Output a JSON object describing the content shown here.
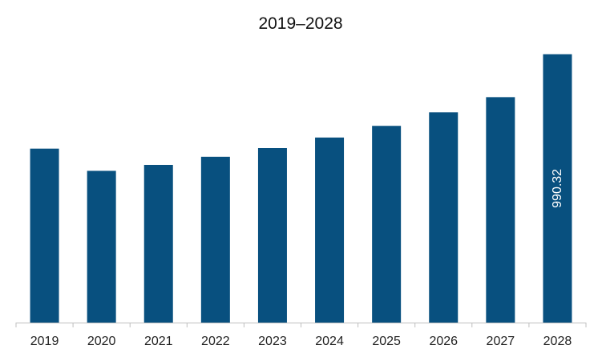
{
  "chart_data": {
    "type": "bar",
    "title": "2019–2028",
    "xlabel": "",
    "ylabel": "",
    "categories": [
      "2019",
      "2020",
      "2021",
      "2022",
      "2023",
      "2024",
      "2025",
      "2026",
      "2027",
      "2028"
    ],
    "values": [
      642,
      560,
      582,
      612,
      644,
      683,
      726,
      776,
      832,
      990.32
    ],
    "data_labels": [
      {
        "category": "2028",
        "text": "990.32"
      }
    ],
    "ylim": [
      0,
      1050
    ],
    "grid": false,
    "legend": "none",
    "colors": {
      "bar": "#08507f",
      "axis": "#bfbfbf",
      "title": "#111111",
      "tick": "#222222",
      "data_label": "#ffffff"
    }
  }
}
